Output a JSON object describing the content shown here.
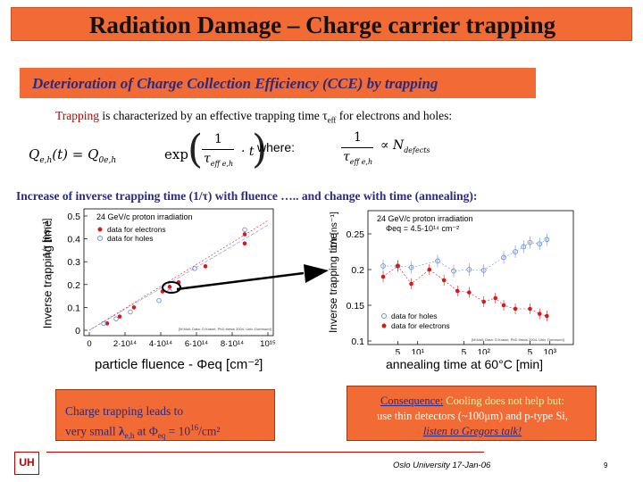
{
  "title": "Radiation Damage – Charge carrier trapping",
  "subtitle": "Deterioration of Charge Collection Efficiency (CCE) by trapping",
  "line1": {
    "word": "Trapping",
    "rest": " is characterized by an effective trapping time ",
    "tau": "τ",
    "sub": "eff",
    "end": " for electrons and holes:"
  },
  "formula": {
    "lhs": "Q",
    "lhs_sub": "e,h",
    "lhs_arg": "(t) = Q",
    "lhs_sub0": "0e,h",
    "exp": "exp",
    "numer": "1",
    "den": "τ",
    "den_sub": "eff e,h",
    "mult": "· t",
    "where": "where:",
    "r_numer": "1",
    "r_den": "τ",
    "r_den_sub": "eff e,h",
    "prop": "∝ N",
    "prop_sub": "defects"
  },
  "line2": {
    "a": "Increase of inverse trapping time (1/",
    "tau": "τ",
    "b": ") with fluence  ….. and change with time (annealing):"
  },
  "chart_left": {
    "title": "24 GeV/c proton irradiation",
    "ylabel": "Inverse trapping time",
    "ylabel_unit": "1/τ [ns⁻¹]",
    "xlabel": "particle fluence   -  Φeq [cm⁻²]",
    "legend": [
      "data for electrons",
      "data for holes"
    ],
    "yticks": [
      "0",
      "0.1",
      "0.2",
      "0.3",
      "0.4",
      "0.5"
    ],
    "xticks": [
      "0",
      "2·10¹⁴",
      "4·10¹⁴",
      "6·10¹⁴",
      "8·10¹⁴",
      "10¹⁵"
    ],
    "ref": "[M.Moll: Data: O.Krasel, PhD thesis 2004, Univ. Dortmund]"
  },
  "chart_right": {
    "title1": "24 GeV/c proton irradiation",
    "title2": "Φeq = 4.5·10¹⁴ cm⁻²",
    "ylabel": "Inverse trapping time",
    "ylabel_unit": "1/τ [ns⁻¹]",
    "xlabel": "annealing time at 60°C [min]",
    "legend": [
      "data for holes",
      "data for electrons"
    ],
    "yticks": [
      "0.1",
      "0.15",
      "0.2",
      "0.25"
    ],
    "xticks": [
      "5",
      "10¹",
      "5",
      "10²",
      "5",
      "10³"
    ],
    "ref": "[M.Moll; Data: O.Krasel, PhD thesis 2004, Univ. Dortmund]"
  },
  "chart_data": [
    {
      "type": "scatter",
      "title": "24 GeV/c proton irradiation",
      "xlabel": "particle fluence - Φeq [cm⁻²]",
      "ylabel": "Inverse trapping time 1/τ [ns⁻¹]",
      "xlim": [
        0,
        1000000000000000.0
      ],
      "ylim": [
        0,
        0.5
      ],
      "series": [
        {
          "name": "data for electrons",
          "x": [
            100000000000000.0,
            170000000000000.0,
            250000000000000.0,
            410000000000000.0,
            450000000000000.0,
            500000000000000.0,
            650000000000000.0,
            870000000000000.0,
            870000000000000.0
          ],
          "y": [
            0.03,
            0.06,
            0.1,
            0.17,
            0.19,
            0.21,
            0.28,
            0.42,
            0.38
          ]
        },
        {
          "name": "data for holes",
          "x": [
            80000000000000.0,
            150000000000000.0,
            230000000000000.0,
            390000000000000.0,
            450000000000000.0,
            590000000000000.0,
            870000000000000.0
          ],
          "y": [
            0.03,
            0.05,
            0.08,
            0.13,
            0.17,
            0.27,
            0.44
          ]
        }
      ]
    },
    {
      "type": "scatter",
      "title": "24 GeV/c proton irradiation",
      "xlabel": "annealing time at 60°C [min]",
      "ylabel": "Inverse trapping time 1/τ [ns⁻¹]",
      "xscale": "log",
      "xlim": [
        2,
        2000
      ],
      "ylim": [
        0.1,
        0.27
      ],
      "series": [
        {
          "name": "data for holes",
          "x": [
            3,
            5,
            8,
            20,
            35,
            60,
            100,
            200,
            300,
            400,
            500,
            700,
            900
          ],
          "y": [
            0.205,
            0.205,
            0.203,
            0.212,
            0.198,
            0.2,
            0.199,
            0.217,
            0.225,
            0.232,
            0.238,
            0.236,
            0.242
          ]
        },
        {
          "name": "data for electrons",
          "x": [
            3,
            5,
            8,
            15,
            25,
            40,
            60,
            100,
            150,
            200,
            300,
            500,
            700,
            900
          ],
          "y": [
            0.19,
            0.205,
            0.18,
            0.2,
            0.185,
            0.17,
            0.168,
            0.155,
            0.16,
            0.15,
            0.145,
            0.145,
            0.138,
            0.135
          ]
        }
      ]
    }
  ],
  "box_left": {
    "line1": "Charge trapping leads to",
    "line2a": "very small ",
    "lambda": "λ",
    "lambda_sub": "e,h",
    "line2b": " at  ",
    "phi": "Φ",
    "phi_sub": "eq",
    "line2c": " = 10",
    "exp": "16",
    "unit": "/cm²"
  },
  "box_right": {
    "heading": "Consequence:",
    "line1": " Cooling does not help but:",
    "line2a": "use thin detectors (~100",
    "mu": "μ",
    "line2b": "m) and p-type Si,",
    "line3": "listen to Gregors talk!"
  },
  "footer": {
    "logo": "UH",
    "center": "Oslo University 17-Jan-06",
    "page": "9"
  },
  "colors": {
    "orange": "#f26a34",
    "navy": "#2a2a80",
    "red": "#c00000",
    "electron": "#d9181c",
    "hole": "#6f8fd6"
  }
}
